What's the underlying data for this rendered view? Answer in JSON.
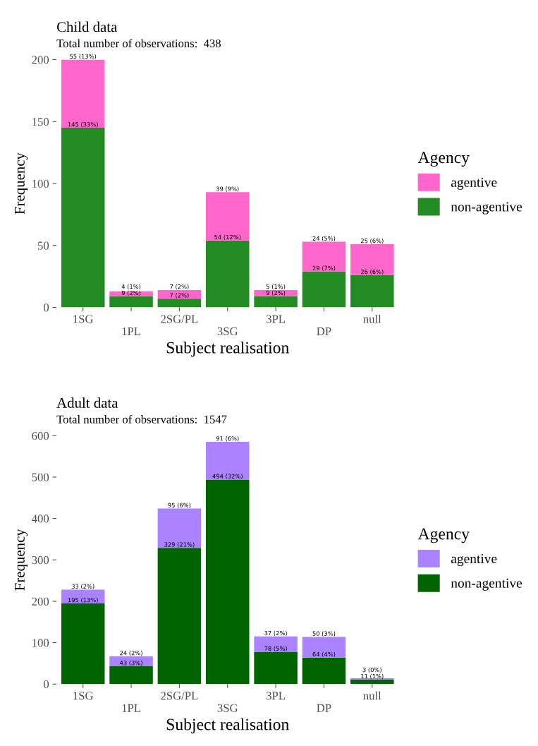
{
  "chart_data": [
    {
      "type": "bar",
      "stacked": true,
      "title": "Child data",
      "subtitle": "Total number of observations:  438",
      "xlabel": "Subject realisation",
      "ylabel": "Frequency",
      "legend_title": "Agency",
      "legend": "right",
      "grid": false,
      "categories": [
        "1SG",
        "1PL",
        "2SG/PL",
        "3SG",
        "3PL",
        "DP",
        "null"
      ],
      "ylim": [
        0,
        200
      ],
      "yticks": [
        0,
        50,
        100,
        150,
        200
      ],
      "series": [
        {
          "name": "non-agentive",
          "color": "#228b22",
          "values": [
            145,
            9,
            7,
            54,
            9,
            29,
            26
          ],
          "value_labels": [
            "145 (33%)",
            "9 (2%)",
            "7 (2%)",
            "54 (12%)",
            "9 (2%)",
            "29 (7%)",
            "26 (6%)"
          ]
        },
        {
          "name": "agentive",
          "color": "#ff66cc",
          "values": [
            55,
            4,
            7,
            39,
            5,
            24,
            25
          ],
          "value_labels": [
            "55 (13%)",
            "4 (1%)",
            "7 (2%)",
            "39 (9%)",
            "5 (1%)",
            "24 (5%)",
            "25 (6%)"
          ]
        }
      ]
    },
    {
      "type": "bar",
      "stacked": true,
      "title": "Adult data",
      "subtitle": "Total number of observations:  1547",
      "xlabel": "Subject realisation",
      "ylabel": "Frequency",
      "legend_title": "Agency",
      "legend": "right",
      "grid": false,
      "categories": [
        "1SG",
        "1PL",
        "2SG/PL",
        "3SG",
        "3PL",
        "DP",
        "null"
      ],
      "ylim": [
        0,
        600
      ],
      "yticks": [
        0,
        100,
        200,
        300,
        400,
        500,
        600
      ],
      "series": [
        {
          "name": "non-agentive",
          "color": "#006400",
          "values": [
            195,
            43,
            329,
            494,
            78,
            64,
            11
          ],
          "value_labels": [
            "195 (13%)",
            "43 (3%)",
            "329 (21%)",
            "494 (32%)",
            "78 (5%)",
            "64 (4%)",
            "11 (1%)"
          ]
        },
        {
          "name": "agentive",
          "color": "#ab82ff",
          "values": [
            33,
            24,
            95,
            91,
            37,
            50,
            3
          ],
          "value_labels": [
            "33 (2%)",
            "24 (2%)",
            "95 (6%)",
            "91 (6%)",
            "37 (2%)",
            "50 (3%)",
            "3 (0%)"
          ]
        }
      ]
    }
  ]
}
